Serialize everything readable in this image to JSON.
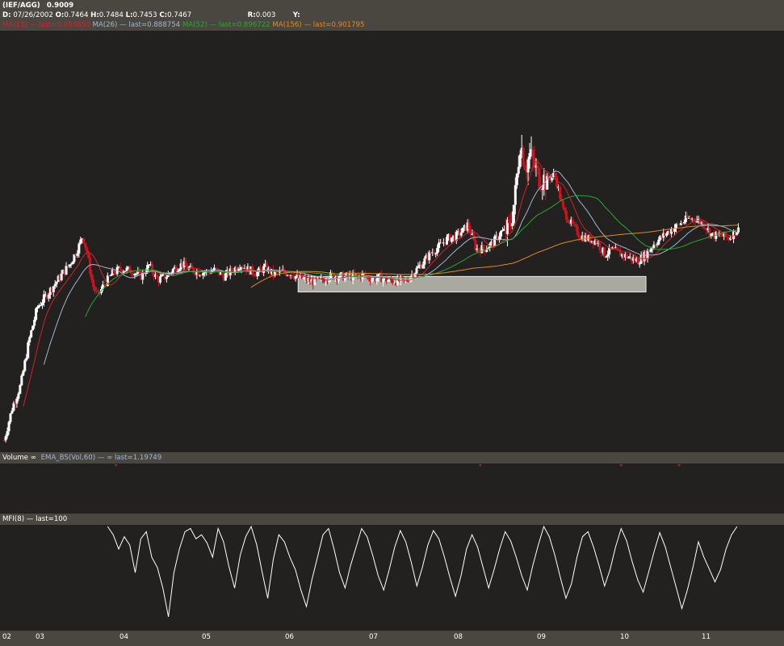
{
  "header": {
    "symbol": "(IEF/AGG)",
    "last_price": "0.9009",
    "date_label": "D:",
    "date": "07/26/2002",
    "open_label": "O:",
    "open": "0.7464",
    "high_label": "H:",
    "high": "0.7484",
    "low_label": "L:",
    "low": "0.7453",
    "close_label": "C:",
    "close": "0.7467",
    "range_label": "R:",
    "range": "0.003",
    "y_label": "Y:",
    "indicators": [
      {
        "text": "MA(13) — last=0.893650",
        "color": "#d4202a"
      },
      {
        "text": "MA(26) — last=0.888754",
        "color": "#9fb6d0"
      },
      {
        "text": "MA(52) — last=0.896722",
        "color": "#27a82d"
      },
      {
        "text": "MA(156) — last=0.901795",
        "color": "#e08a20"
      }
    ]
  },
  "volume_panel": {
    "label": "Volume ∞",
    "ema_label": "EMA_BS(Vol,60) — ∞ last=1.19749",
    "ema_color": "#9fb6d0"
  },
  "mfi_panel": {
    "label": "MFI(8) — last=100"
  },
  "colors": {
    "background": "#222120",
    "panel_header": "#4a4741",
    "up": "#ffffff",
    "down": "#c8141e",
    "highlight_box": "#a9a8a1"
  },
  "x_axis_ticks": [
    "02",
    "03",
    "04",
    "05",
    "06",
    "07",
    "08",
    "09",
    "10",
    "11"
  ],
  "chart_data": [
    {
      "type": "candlestick",
      "title": "(IEF/AGG)",
      "x_ticks": [
        "02",
        "03",
        "04",
        "05",
        "06",
        "07",
        "08",
        "09",
        "10",
        "11"
      ],
      "xlim": [
        2002.5,
        2011.45
      ],
      "ylim": [
        0.7,
        1.08
      ],
      "close_path": [
        [
          2002.55,
          0.71
        ],
        [
          2002.65,
          0.74
        ],
        [
          2002.75,
          0.76
        ],
        [
          2002.85,
          0.8
        ],
        [
          2002.95,
          0.83
        ],
        [
          2003.05,
          0.84
        ],
        [
          2003.15,
          0.85
        ],
        [
          2003.25,
          0.86
        ],
        [
          2003.35,
          0.87
        ],
        [
          2003.45,
          0.885
        ],
        [
          2003.5,
          0.895
        ],
        [
          2003.55,
          0.88
        ],
        [
          2003.62,
          0.85
        ],
        [
          2003.68,
          0.84
        ],
        [
          2003.75,
          0.85
        ],
        [
          2003.85,
          0.86
        ],
        [
          2003.95,
          0.865
        ],
        [
          2004.1,
          0.863
        ],
        [
          2004.2,
          0.858
        ],
        [
          2004.3,
          0.868
        ],
        [
          2004.4,
          0.855
        ],
        [
          2004.5,
          0.858
        ],
        [
          2004.6,
          0.865
        ],
        [
          2004.7,
          0.869
        ],
        [
          2004.8,
          0.864
        ],
        [
          2004.9,
          0.862
        ],
        [
          2005.0,
          0.862
        ],
        [
          2005.1,
          0.864
        ],
        [
          2005.2,
          0.858
        ],
        [
          2005.3,
          0.863
        ],
        [
          2005.4,
          0.869
        ],
        [
          2005.5,
          0.864
        ],
        [
          2005.6,
          0.861
        ],
        [
          2005.7,
          0.866
        ],
        [
          2005.8,
          0.86
        ],
        [
          2005.9,
          0.862
        ],
        [
          2006.0,
          0.861
        ],
        [
          2006.1,
          0.857
        ],
        [
          2006.2,
          0.855
        ],
        [
          2006.3,
          0.853
        ],
        [
          2006.4,
          0.855
        ],
        [
          2006.5,
          0.859
        ],
        [
          2006.6,
          0.858
        ],
        [
          2006.7,
          0.858
        ],
        [
          2006.8,
          0.858
        ],
        [
          2006.9,
          0.859
        ],
        [
          2007.0,
          0.856
        ],
        [
          2007.1,
          0.857
        ],
        [
          2007.2,
          0.854
        ],
        [
          2007.3,
          0.854
        ],
        [
          2007.4,
          0.854
        ],
        [
          2007.5,
          0.862
        ],
        [
          2007.6,
          0.87
        ],
        [
          2007.7,
          0.879
        ],
        [
          2007.8,
          0.885
        ],
        [
          2007.9,
          0.892
        ],
        [
          2008.0,
          0.894
        ],
        [
          2008.1,
          0.9
        ],
        [
          2008.15,
          0.905
        ],
        [
          2008.25,
          0.883
        ],
        [
          2008.35,
          0.883
        ],
        [
          2008.45,
          0.888
        ],
        [
          2008.55,
          0.898
        ],
        [
          2008.65,
          0.9
        ],
        [
          2008.72,
          0.93
        ],
        [
          2008.78,
          0.98
        ],
        [
          2008.85,
          0.958
        ],
        [
          2008.9,
          0.968
        ],
        [
          2008.95,
          0.958
        ],
        [
          2009.0,
          0.948
        ],
        [
          2009.1,
          0.945
        ],
        [
          2009.2,
          0.95
        ],
        [
          2009.3,
          0.918
        ],
        [
          2009.4,
          0.905
        ],
        [
          2009.5,
          0.895
        ],
        [
          2009.6,
          0.892
        ],
        [
          2009.7,
          0.89
        ],
        [
          2009.8,
          0.878
        ],
        [
          2009.9,
          0.882
        ],
        [
          2010.0,
          0.878
        ],
        [
          2010.1,
          0.875
        ],
        [
          2010.2,
          0.872
        ],
        [
          2010.3,
          0.878
        ],
        [
          2010.4,
          0.888
        ],
        [
          2010.5,
          0.894
        ],
        [
          2010.6,
          0.9
        ],
        [
          2010.7,
          0.905
        ],
        [
          2010.8,
          0.91
        ],
        [
          2010.9,
          0.91
        ],
        [
          2011.0,
          0.905
        ],
        [
          2011.1,
          0.895
        ],
        [
          2011.2,
          0.895
        ],
        [
          2011.3,
          0.893
        ],
        [
          2011.4,
          0.9
        ]
      ],
      "series": [
        {
          "name": "MA(13)",
          "color": "#d4202a",
          "last": 0.89365
        },
        {
          "name": "MA(26)",
          "color": "#9fb6d0",
          "last": 0.888754
        },
        {
          "name": "MA(52)",
          "color": "#27a82d",
          "last": 0.896722
        },
        {
          "name": "MA(156)",
          "color": "#e08a20",
          "last": 0.901795
        }
      ],
      "highlight_box": {
        "x_start": 2006.1,
        "x_end": 2010.3,
        "y_low": 0.844,
        "y_high": 0.858
      }
    },
    {
      "type": "line",
      "title": "Volume ∞",
      "series": [
        {
          "name": "EMA_BS(Vol,60)",
          "last": 1.19749
        }
      ],
      "markers_x": [
        2003.9,
        2008.3,
        2010.0,
        2010.7
      ]
    },
    {
      "type": "line",
      "title": "MFI(8)",
      "ylim": [
        0,
        100
      ],
      "last": 100,
      "x_start": 2003.8,
      "x_end": 2011.4,
      "values": [
        100,
        92,
        78,
        90,
        82,
        55,
        88,
        95,
        70,
        60,
        40,
        12,
        55,
        78,
        95,
        98,
        88,
        92,
        84,
        70,
        98,
        85,
        60,
        40,
        72,
        90,
        100,
        82,
        55,
        30,
        68,
        92,
        85,
        70,
        58,
        38,
        22,
        48,
        70,
        92,
        98,
        78,
        55,
        40,
        62,
        80,
        98,
        90,
        72,
        52,
        38,
        58,
        80,
        96,
        85,
        65,
        42,
        60,
        82,
        96,
        88,
        70,
        50,
        32,
        52,
        78,
        92,
        80,
        60,
        40,
        58,
        78,
        95,
        86,
        70,
        52,
        38,
        62,
        82,
        100,
        90,
        72,
        50,
        30,
        44,
        70,
        90,
        95,
        80,
        62,
        42,
        58,
        80,
        98,
        86,
        66,
        48,
        36,
        56,
        76,
        94,
        80,
        60,
        40,
        20,
        38,
        60,
        85,
        70,
        58,
        46,
        58,
        78,
        92,
        100
      ]
    }
  ]
}
